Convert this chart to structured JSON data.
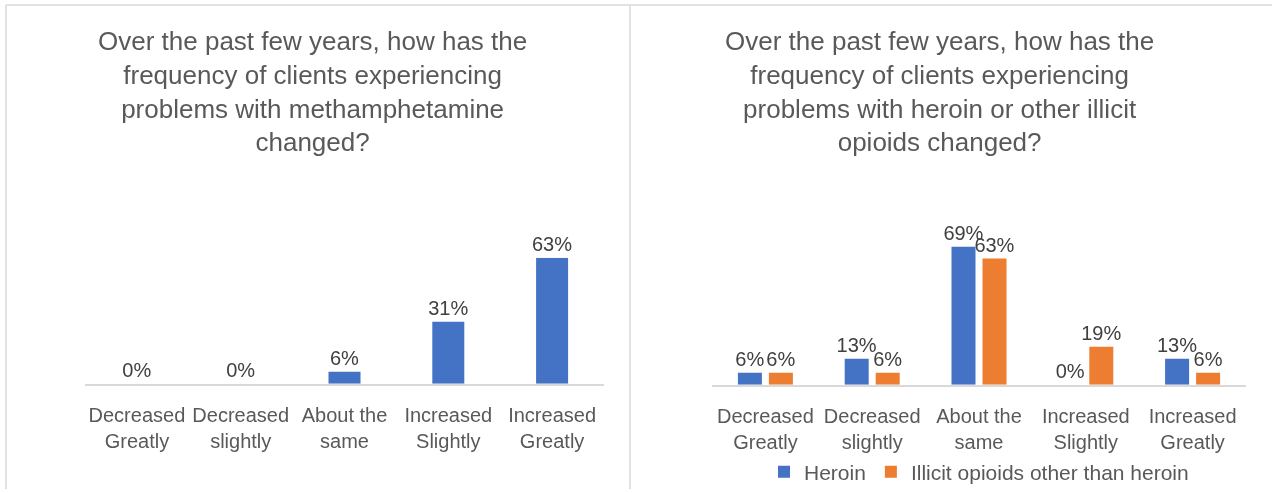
{
  "chart_data": [
    {
      "type": "bar",
      "title": "Over the past few years, how has the\nfrequency of clients experiencing\nproblems with methamphetamine\nchanged?",
      "categories": [
        "Decreased Greatly",
        "Decreased slightly",
        "About the same",
        "Increased Slightly",
        "Increased Greatly"
      ],
      "color": "#4472c4",
      "values": [
        0,
        0,
        6,
        31,
        63
      ],
      "value_labels": [
        "0%",
        "0%",
        "6%",
        "31%",
        "63%"
      ]
    },
    {
      "type": "bar",
      "title": "Over the past few years, how has the\nfrequency of clients experiencing\nproblems with heroin or other illicit\nopioids changed?",
      "categories": [
        "Decreased Greatly",
        "Decreased slightly",
        "About the same",
        "Increased Slightly",
        "Increased Greatly"
      ],
      "series": [
        {
          "name": "Heroin",
          "color": "#4472c4",
          "values": [
            6,
            13,
            69,
            0,
            13
          ],
          "value_labels": [
            "6%",
            "13%",
            "69%",
            "0%",
            "13%"
          ]
        },
        {
          "name": "Illicit opioids other than heroin",
          "color": "#ed7d31",
          "values": [
            6,
            6,
            63,
            19,
            6
          ],
          "value_labels": [
            "6%",
            "6%",
            "63%",
            "19%",
            "6%"
          ]
        }
      ],
      "legend": "bottom"
    }
  ]
}
